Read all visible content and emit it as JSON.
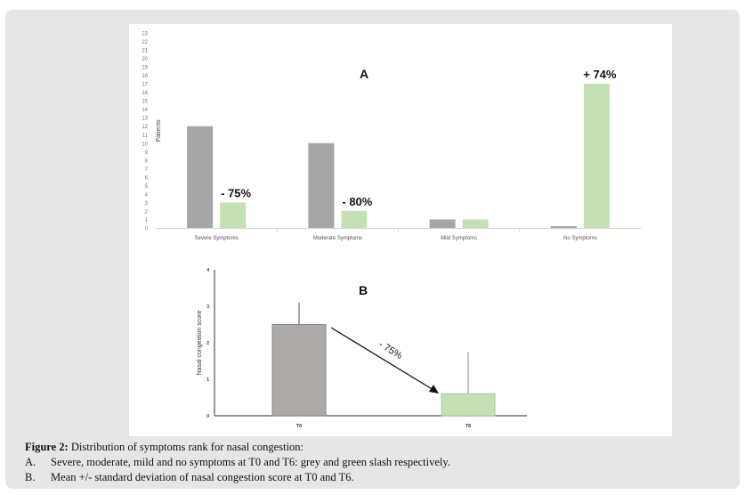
{
  "chart_data": [
    {
      "type": "bar",
      "title": "A",
      "ylabel": "Patients",
      "xlabel": "",
      "ylim": [
        0,
        23
      ],
      "yticks": [
        "0",
        "1",
        "2",
        "3",
        "4",
        "5",
        "6",
        "7",
        "8",
        "9",
        "10",
        "11",
        "12",
        "13",
        "14",
        "15",
        "16",
        "17",
        "18",
        "19",
        "20",
        "21",
        "22",
        "23"
      ],
      "categories": [
        "Severe Symptoms",
        "Moderate Symptoms",
        "Mild Symptoms",
        "No Symptoms"
      ],
      "series": [
        {
          "name": "T0",
          "color": "#a6a6a6",
          "values": [
            12,
            10,
            1,
            0.2
          ]
        },
        {
          "name": "T6",
          "color": "#c5e0b4",
          "values": [
            3,
            2,
            1,
            17
          ]
        }
      ],
      "annotations": [
        "- 75%",
        "- 80%",
        "",
        "+ 74%"
      ]
    },
    {
      "type": "bar",
      "title": "B",
      "ylabel": "Nasal congestion score",
      "ylim": [
        0,
        4
      ],
      "yticks": [
        "0",
        "1",
        "2",
        "3",
        "4"
      ],
      "categories": [
        "T0",
        "T6"
      ],
      "values": [
        2.5,
        0.6
      ],
      "error_upper": [
        3.1,
        1.75
      ],
      "colors": [
        "#aeaaaa",
        "#c5e0b4"
      ],
      "annotation": "- 75%"
    }
  ],
  "caption": {
    "figure_label": "Figure 2:",
    "title": "Distribution of symptoms rank for nasal congestion:",
    "items": [
      {
        "label": "A.",
        "text": "Severe, moderate, mild and no symptoms at T0 and T6: grey and green slash respectively."
      },
      {
        "label": "B.",
        "text": "Mean +/- standard deviation of nasal congestion score at T0 and T6."
      }
    ]
  }
}
